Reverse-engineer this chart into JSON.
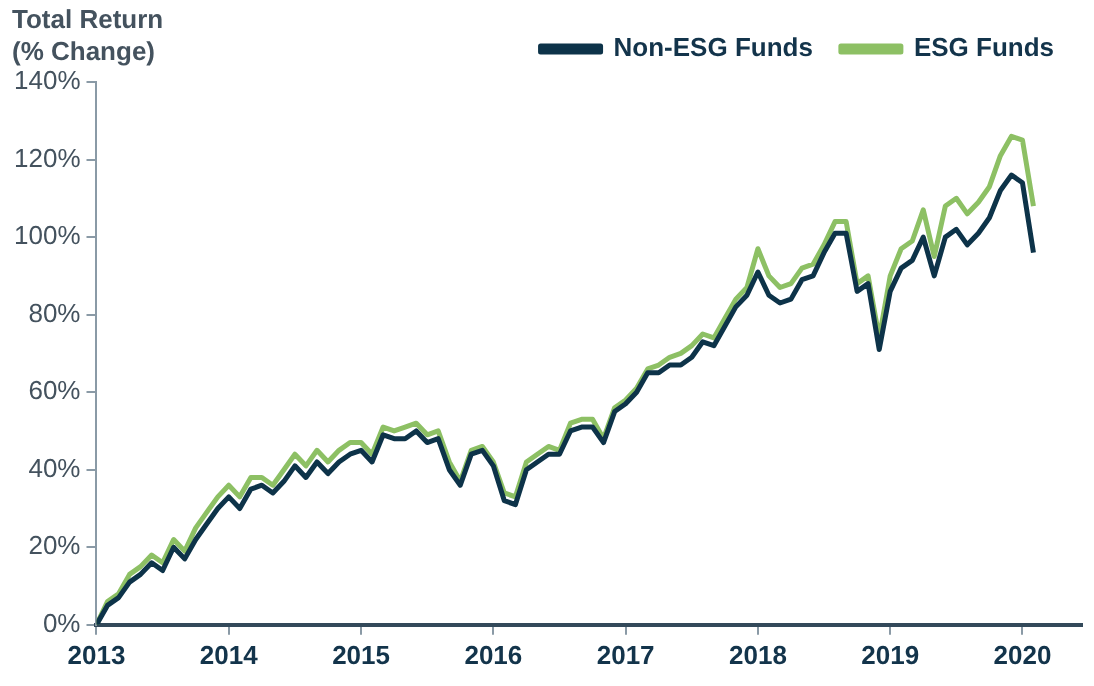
{
  "chart_data": {
    "type": "line",
    "ylabel": "Total Return\n(% Change)",
    "x": [
      2013.0,
      2013.083,
      2013.167,
      2013.25,
      2013.333,
      2013.417,
      2013.5,
      2013.583,
      2013.667,
      2013.75,
      2013.833,
      2013.917,
      2014.0,
      2014.083,
      2014.167,
      2014.25,
      2014.333,
      2014.417,
      2014.5,
      2014.583,
      2014.667,
      2014.75,
      2014.833,
      2014.917,
      2015.0,
      2015.083,
      2015.167,
      2015.25,
      2015.333,
      2015.417,
      2015.5,
      2015.583,
      2015.667,
      2015.75,
      2015.833,
      2015.917,
      2016.0,
      2016.083,
      2016.167,
      2016.25,
      2016.333,
      2016.417,
      2016.5,
      2016.583,
      2016.667,
      2016.75,
      2016.833,
      2016.917,
      2017.0,
      2017.083,
      2017.167,
      2017.25,
      2017.333,
      2017.417,
      2017.5,
      2017.583,
      2017.667,
      2017.75,
      2017.833,
      2017.917,
      2018.0,
      2018.083,
      2018.167,
      2018.25,
      2018.333,
      2018.417,
      2018.5,
      2018.583,
      2018.667,
      2018.75,
      2018.833,
      2018.917,
      2019.0,
      2019.083,
      2019.167,
      2019.25,
      2019.333,
      2019.417,
      2019.5,
      2019.583,
      2019.667,
      2019.75,
      2019.833,
      2019.917,
      2020.0,
      2020.083
    ],
    "series": [
      {
        "name": "Non-ESG Funds",
        "color": "#0d3349",
        "values": [
          0,
          5,
          7,
          11,
          13,
          16,
          14,
          20,
          17,
          22,
          26,
          30,
          33,
          30,
          35,
          36,
          34,
          37,
          41,
          38,
          42,
          39,
          42,
          44,
          45,
          42,
          49,
          48,
          48,
          50,
          47,
          48,
          40,
          36,
          44,
          45,
          41,
          32,
          31,
          40,
          42,
          44,
          44,
          50,
          51,
          51,
          47,
          55,
          57,
          60,
          65,
          65,
          67,
          67,
          69,
          73,
          72,
          77,
          82,
          85,
          91,
          85,
          83,
          84,
          89,
          90,
          96,
          101,
          101,
          86,
          88,
          71,
          86,
          92,
          94,
          100,
          90,
          100,
          102,
          98,
          101,
          105,
          112,
          116,
          114,
          96
        ]
      },
      {
        "name": "ESG Funds",
        "color": "#8dc064",
        "values": [
          0,
          6,
          8,
          13,
          15,
          18,
          16,
          22,
          19,
          25,
          29,
          33,
          36,
          33,
          38,
          38,
          36,
          40,
          44,
          41,
          45,
          42,
          45,
          47,
          47,
          44,
          51,
          50,
          51,
          52,
          49,
          50,
          42,
          37,
          45,
          46,
          42,
          34,
          33,
          42,
          44,
          46,
          45,
          52,
          53,
          53,
          48,
          56,
          58,
          61,
          66,
          67,
          69,
          70,
          72,
          75,
          74,
          79,
          84,
          87,
          97,
          90,
          87,
          88,
          92,
          93,
          98,
          104,
          104,
          88,
          90,
          74,
          90,
          97,
          99,
          107,
          95,
          108,
          110,
          106,
          109,
          113,
          121,
          126,
          125,
          108
        ]
      }
    ],
    "xlim": [
      2013,
      2020.45
    ],
    "xticks": [
      2013,
      2014,
      2015,
      2016,
      2017,
      2018,
      2019,
      2020
    ],
    "ylim": [
      0,
      140
    ],
    "yticks": [
      {
        "value": 0,
        "label": "0%"
      },
      {
        "value": 20,
        "label": "20%"
      },
      {
        "value": 40,
        "label": "40%"
      },
      {
        "value": 60,
        "label": "60%"
      },
      {
        "value": 80,
        "label": "80%"
      },
      {
        "value": 100,
        "label": "100%"
      },
      {
        "value": 120,
        "label": "120%"
      },
      {
        "value": 140,
        "label": "140%"
      }
    ],
    "grid": false,
    "legend": "top right",
    "marker": "none",
    "line_style": "solid"
  }
}
